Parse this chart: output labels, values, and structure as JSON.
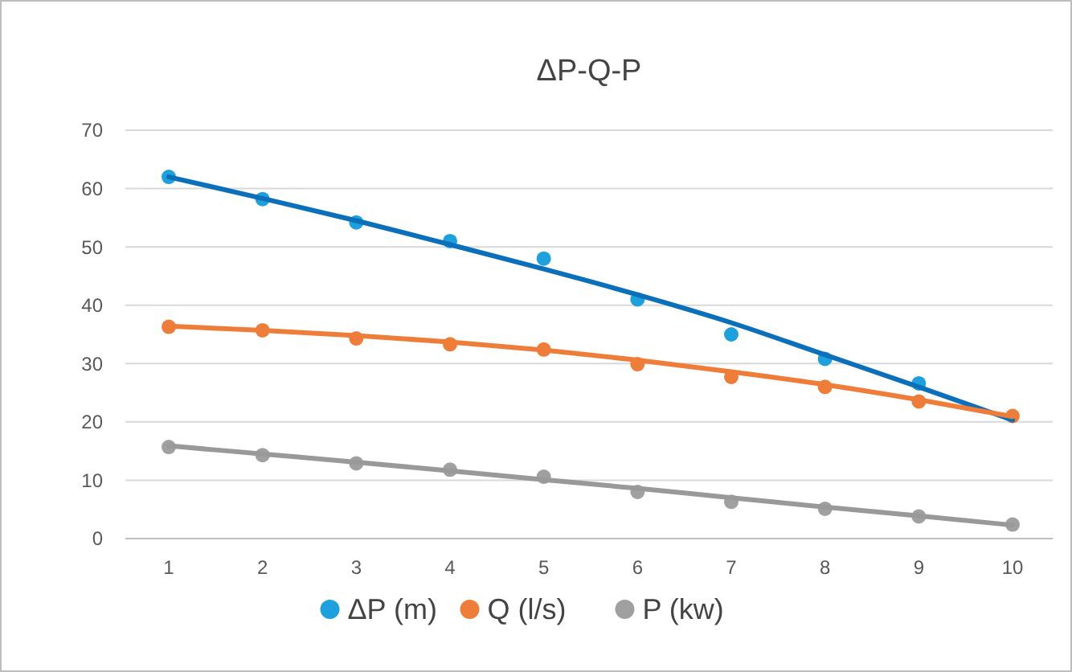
{
  "chart_data": {
    "type": "scatter",
    "title": "ΔP-Q-P",
    "categories": [
      "1",
      "2",
      "3",
      "4",
      "5",
      "6",
      "7",
      "8",
      "9",
      "10"
    ],
    "ylim": [
      0,
      70
    ],
    "yticks": [
      0,
      10,
      20,
      30,
      40,
      50,
      60,
      70
    ],
    "grid": "y",
    "legend": "bottom",
    "marker": "circle",
    "series": [
      {
        "name": "ΔP (m)",
        "color": "#1ea0dc",
        "values": [
          62,
          58.2,
          54.2,
          51,
          48,
          41,
          35,
          30.8,
          26.6,
          null
        ]
      },
      {
        "name": "Q (l/s)",
        "color": "#ef7d3a",
        "values": [
          36.3,
          35.7,
          34.3,
          33.3,
          32.4,
          29.9,
          27.7,
          26,
          23.5,
          21
        ]
      },
      {
        "name": "P (kw)",
        "color": "#a0a0a0",
        "values": [
          15.7,
          14.3,
          12.9,
          11.8,
          10.6,
          8,
          6.3,
          5.1,
          3.8,
          2.4
        ]
      },
      {
        "type": "line",
        "marker": "none",
        "color": "#0b6fba",
        "values": [
          62,
          58.3,
          54.5,
          50.4,
          46.2,
          41.8,
          37,
          31.5,
          26,
          20.3
        ]
      },
      {
        "type": "line",
        "marker": "none",
        "color": "#ef7d3a",
        "values": [
          36.4,
          35.7,
          34.8,
          33.7,
          32.3,
          30.6,
          28.6,
          26.4,
          23.8,
          20.9
        ]
      },
      {
        "type": "line",
        "marker": "none",
        "color": "#999999",
        "values": [
          15.9,
          14.5,
          13.1,
          11.6,
          10.1,
          8.6,
          7,
          5.4,
          3.9,
          2.3
        ]
      }
    ]
  }
}
